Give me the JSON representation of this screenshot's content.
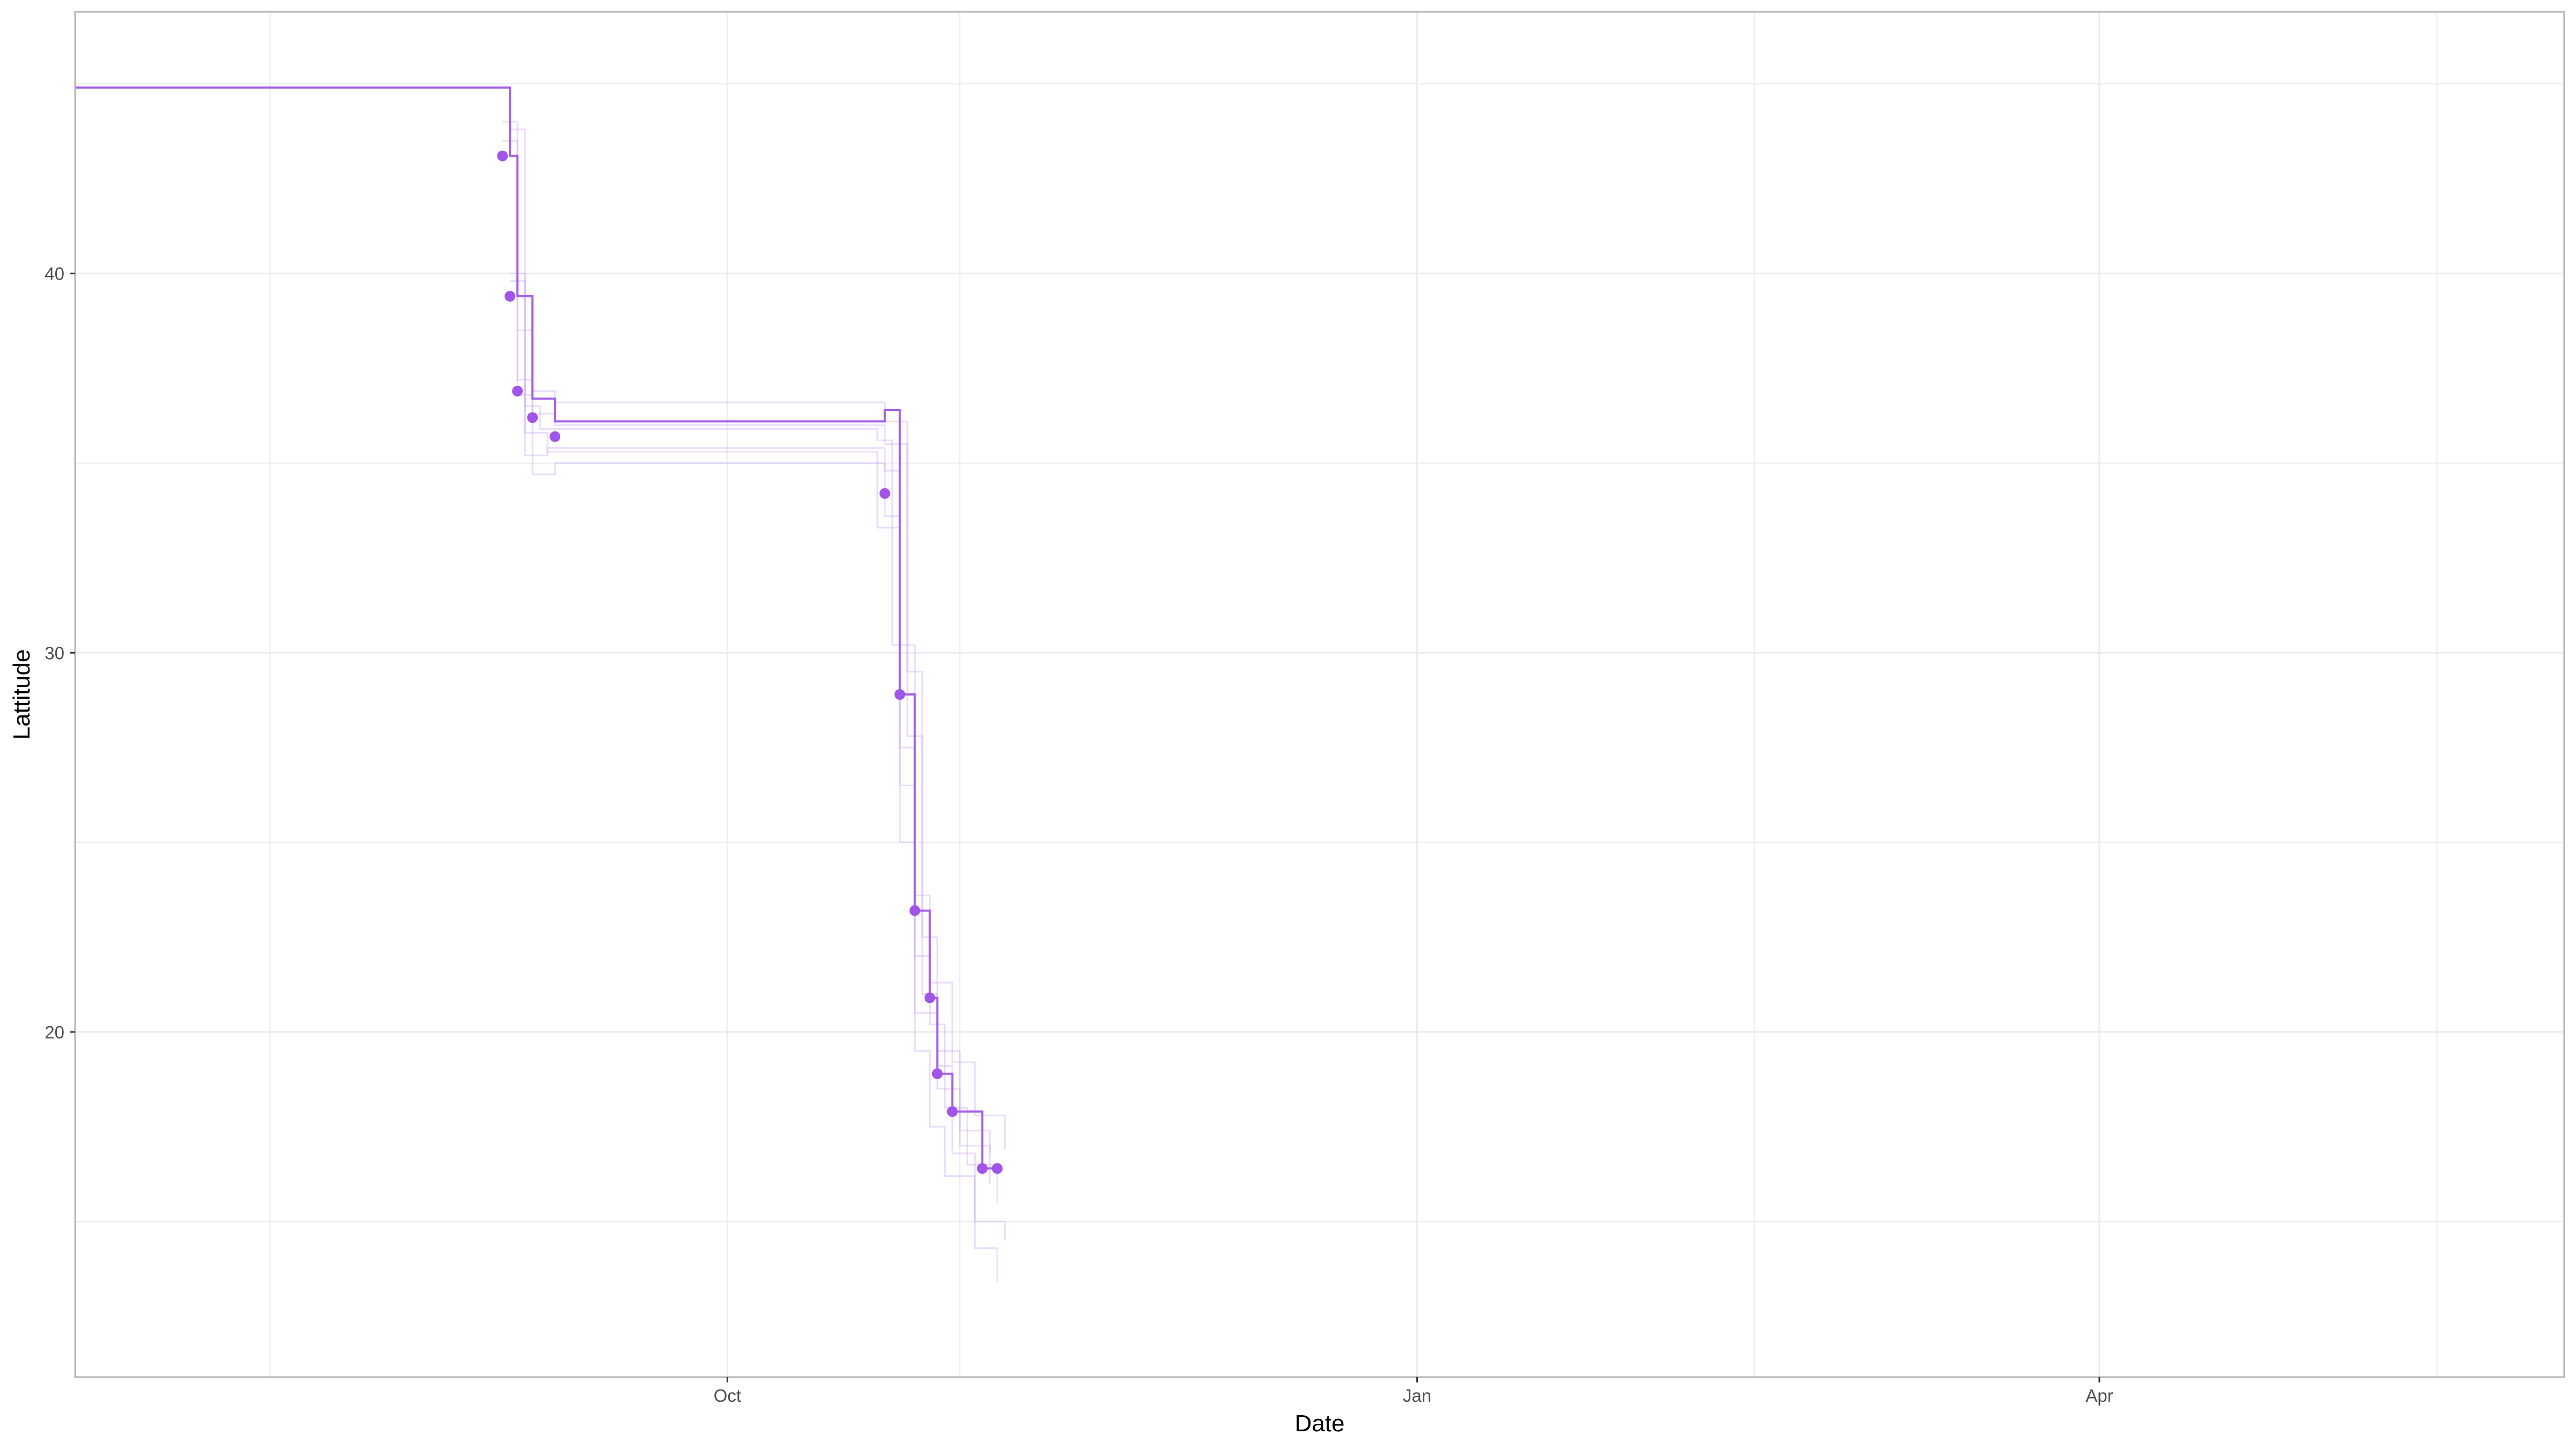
{
  "chart_data": {
    "type": "line",
    "title": "",
    "xlabel": "Date",
    "ylabel": "Lattitude",
    "x_axis_type": "date",
    "xlim": [
      "2023-07-06",
      "2024-06-02"
    ],
    "ylim": [
      10.9,
      46.9
    ],
    "x_major_ticks": [
      {
        "date": "2023-10-01",
        "label": "Oct"
      },
      {
        "date": "2024-01-01",
        "label": "Jan"
      },
      {
        "date": "2024-04-01",
        "label": "Apr"
      }
    ],
    "x_minor_ticks": [
      "2023-08-01",
      "2023-11-01",
      "2024-02-15",
      "2024-05-16"
    ],
    "y_major_ticks": [
      {
        "value": 20,
        "label": "20"
      },
      {
        "value": 30,
        "label": "30"
      },
      {
        "value": 40,
        "label": "40"
      }
    ],
    "y_minor_ticks": [
      15,
      25,
      35,
      45
    ],
    "grid": true,
    "legend": "none",
    "colors": {
      "main_line": "#a560e8",
      "points": "#a155e8",
      "band_lines": "#c9a8f5",
      "grid": "#ebebeb",
      "panel_border": "#b3b3b3"
    },
    "main_step_series": {
      "x": [
        "2023-07-06",
        "2023-09-01",
        "2023-09-02",
        "2023-09-03",
        "2023-09-05",
        "2023-09-08",
        "2023-10-22",
        "2023-10-24",
        "2023-10-26",
        "2023-10-28",
        "2023-10-29",
        "2023-10-31",
        "2023-11-04",
        "2023-11-06"
      ],
      "y": [
        44.9,
        44.9,
        43.1,
        39.4,
        36.7,
        36.1,
        36.4,
        28.9,
        23.2,
        20.9,
        18.9,
        17.9,
        16.4,
        16.4
      ]
    },
    "points": {
      "x": [
        "2023-09-01",
        "2023-09-02",
        "2023-09-03",
        "2023-09-05",
        "2023-09-08",
        "2023-10-22",
        "2023-10-24",
        "2023-10-26",
        "2023-10-28",
        "2023-10-29",
        "2023-10-31",
        "2023-11-04",
        "2023-11-06"
      ],
      "y": [
        43.1,
        39.4,
        36.9,
        36.2,
        35.7,
        34.2,
        28.9,
        23.2,
        20.9,
        18.9,
        17.9,
        16.4,
        16.4
      ]
    },
    "band_series": [
      {
        "x": [
          "2023-09-01",
          "2023-09-03",
          "2023-09-05",
          "2023-09-08",
          "2023-10-22",
          "2023-10-25",
          "2023-10-27",
          "2023-10-29",
          "2023-11-01",
          "2023-11-05"
        ],
        "y": [
          44.0,
          37.2,
          36.9,
          36.6,
          36.1,
          27.8,
          22.5,
          18.5,
          17.4,
          16.0
        ]
      },
      {
        "x": [
          "2023-09-01",
          "2023-09-03",
          "2023-09-05",
          "2023-09-08",
          "2023-10-22",
          "2023-10-25",
          "2023-10-27",
          "2023-10-29",
          "2023-11-01",
          "2023-11-05"
        ],
        "y": [
          43.5,
          36.8,
          36.3,
          36.0,
          35.5,
          29.5,
          21.0,
          19.5,
          17.0,
          16.8
        ]
      },
      {
        "x": [
          "2023-09-02",
          "2023-09-04",
          "2023-09-06",
          "2023-10-21",
          "2023-10-23",
          "2023-10-26",
          "2023-10-28",
          "2023-10-30",
          "2023-11-02",
          "2023-11-06"
        ],
        "y": [
          43.8,
          36.5,
          35.9,
          35.6,
          30.2,
          22.0,
          20.2,
          18.0,
          16.5,
          15.5
        ]
      },
      {
        "x": [
          "2023-09-02",
          "2023-09-04",
          "2023-09-07",
          "2023-10-22",
          "2023-10-24",
          "2023-10-26",
          "2023-10-28",
          "2023-10-30",
          "2023-11-03",
          "2023-11-07"
        ],
        "y": [
          40.0,
          35.2,
          35.4,
          34.8,
          26.5,
          19.5,
          17.5,
          16.2,
          15.0,
          14.5
        ]
      },
      {
        "x": [
          "2023-09-03",
          "2023-09-05",
          "2023-09-08",
          "2023-10-22",
          "2023-10-24",
          "2023-10-26",
          "2023-10-28",
          "2023-10-31",
          "2023-11-03",
          "2023-11-07"
        ],
        "y": [
          38.5,
          34.7,
          35.0,
          33.6,
          27.5,
          23.6,
          21.3,
          19.2,
          17.8,
          16.9
        ]
      },
      {
        "x": [
          "2023-09-02",
          "2023-09-04",
          "2023-09-07",
          "2023-10-21",
          "2023-10-24",
          "2023-10-26",
          "2023-10-29",
          "2023-10-31",
          "2023-11-03",
          "2023-11-06"
        ],
        "y": [
          39.8,
          35.8,
          35.3,
          33.3,
          25.0,
          20.5,
          19.1,
          16.8,
          14.3,
          13.4
        ]
      }
    ]
  }
}
